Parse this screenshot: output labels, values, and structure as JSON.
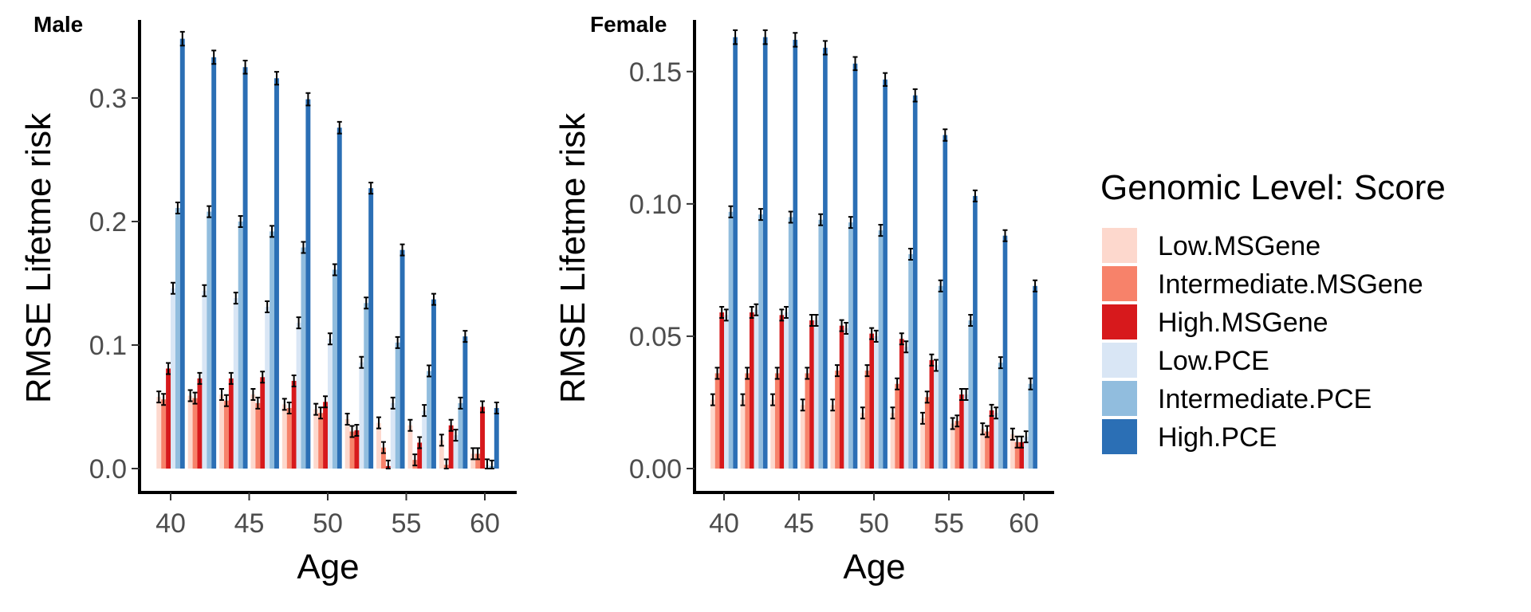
{
  "legend": {
    "title": "Genomic Level: Score",
    "items": [
      "Low.MSGene",
      "Intermediate.MSGene",
      "High.MSGene",
      "Low.PCE",
      "Intermediate.PCE",
      "High.PCE"
    ]
  },
  "colors": {
    "Low.MSGene": "#fdd8cd",
    "Intermediate.MSGene": "#f7826a",
    "High.MSGene": "#d7191c",
    "Low.PCE": "#d9e6f5",
    "Intermediate.PCE": "#91bdde",
    "High.PCE": "#2b6fb5"
  },
  "chart_data": [
    {
      "type": "bar",
      "title": "Male",
      "xlabel": "Age",
      "ylabel": "RMSE Lifetme risk",
      "x": [
        40,
        42,
        44,
        46,
        48,
        50,
        52,
        54,
        56,
        58,
        60
      ],
      "xticks": [
        40,
        45,
        50,
        55,
        60
      ],
      "yticks": [
        "0.0",
        "0.1",
        "0.2",
        "0.3"
      ],
      "ytick_values": [
        0,
        0.1,
        0.2,
        0.3
      ],
      "ylim": [
        0,
        0.36
      ],
      "series": [
        {
          "name": "Low.MSGene",
          "values": [
            0.058,
            0.059,
            0.06,
            0.06,
            0.052,
            0.048,
            0.04,
            0.037,
            0.035,
            0.023,
            0.012
          ]
        },
        {
          "name": "Intermediate.MSGene",
          "values": [
            0.056,
            0.057,
            0.055,
            0.053,
            0.049,
            0.045,
            0.03,
            0.017,
            0.007,
            0.003,
            0.012
          ]
        },
        {
          "name": "High.MSGene",
          "values": [
            0.081,
            0.073,
            0.073,
            0.074,
            0.071,
            0.054,
            0.031,
            0.002,
            0.021,
            0.035,
            0.05
          ]
        },
        {
          "name": "Low.PCE",
          "values": [
            0.146,
            0.144,
            0.138,
            0.131,
            0.118,
            0.105,
            0.086,
            0.053,
            0.047,
            0.027,
            0.003
          ]
        },
        {
          "name": "Intermediate.PCE",
          "values": [
            0.211,
            0.208,
            0.2,
            0.192,
            0.179,
            0.161,
            0.134,
            0.102,
            0.079,
            0.053,
            0.002
          ]
        },
        {
          "name": "High.PCE",
          "values": [
            0.348,
            0.333,
            0.325,
            0.316,
            0.299,
            0.276,
            0.227,
            0.177,
            0.137,
            0.107,
            0.049
          ]
        }
      ]
    },
    {
      "type": "bar",
      "title": "Female",
      "xlabel": "Age",
      "ylabel": "RMSE Lifetme risk",
      "x": [
        40,
        42,
        44,
        46,
        48,
        50,
        52,
        54,
        56,
        58,
        60
      ],
      "xticks": [
        40,
        45,
        50,
        55,
        60
      ],
      "yticks": [
        "0.00",
        "0.05",
        "0.10",
        "0.15"
      ],
      "ytick_values": [
        0,
        0.05,
        0.1,
        0.15
      ],
      "ylim": [
        0,
        0.168
      ],
      "series": [
        {
          "name": "Low.MSGene",
          "values": [
            0.026,
            0.026,
            0.026,
            0.024,
            0.024,
            0.021,
            0.021,
            0.019,
            0.017,
            0.015,
            0.013
          ]
        },
        {
          "name": "Intermediate.MSGene",
          "values": [
            0.036,
            0.036,
            0.036,
            0.036,
            0.037,
            0.037,
            0.032,
            0.027,
            0.018,
            0.014,
            0.01
          ]
        },
        {
          "name": "High.MSGene",
          "values": [
            0.059,
            0.059,
            0.058,
            0.056,
            0.054,
            0.051,
            0.049,
            0.041,
            0.028,
            0.022,
            0.01
          ]
        },
        {
          "name": "Low.PCE",
          "values": [
            0.058,
            0.06,
            0.059,
            0.056,
            0.053,
            0.05,
            0.046,
            0.039,
            0.028,
            0.021,
            0.012
          ]
        },
        {
          "name": "Intermediate.PCE",
          "values": [
            0.097,
            0.096,
            0.095,
            0.094,
            0.093,
            0.09,
            0.081,
            0.069,
            0.056,
            0.04,
            0.032
          ]
        },
        {
          "name": "High.PCE",
          "values": [
            0.163,
            0.163,
            0.162,
            0.159,
            0.153,
            0.147,
            0.141,
            0.126,
            0.103,
            0.088,
            0.069
          ]
        }
      ]
    }
  ]
}
